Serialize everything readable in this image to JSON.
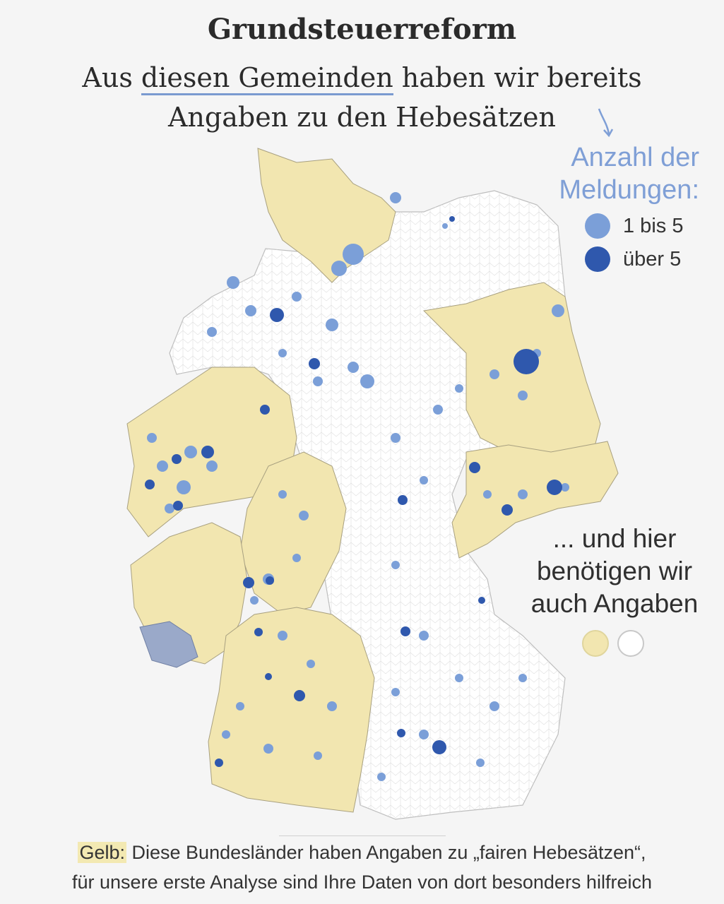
{
  "title": "Grundsteuerreform",
  "subtitle": {
    "line1_pre": "Aus ",
    "line1_highlight": "diesen Gemeinden",
    "line1_post": " haben wir bereits",
    "line2": "Angaben zu den Hebesätzen"
  },
  "legend": {
    "title_line1": "Anzahl der",
    "title_line2": "Meldungen:",
    "items": [
      {
        "label": "1 bis 5",
        "color": "#7b9fd8"
      },
      {
        "label": "über 5",
        "color": "#2f58ad"
      }
    ]
  },
  "note": {
    "line1": "... und hier",
    "line2": "benötigen wir",
    "line3": "auch Angaben",
    "colors": [
      "#f2e6b0",
      "#ffffff"
    ]
  },
  "footer": {
    "gelb": "Gelb:",
    "line1_rest": " Diese Bundesländer haben Angaben zu „fairen Hebesätzen“,",
    "line2": "für unsere erste Analyse sind Ihre Daten von dort besonders hilfreich"
  },
  "colors": {
    "yellow_states": "#f2e6b0",
    "white_states": "#ffffff",
    "reports_low": "#7b9fd8",
    "reports_high": "#2f58ad",
    "saarland": "#9aa9c9"
  }
}
